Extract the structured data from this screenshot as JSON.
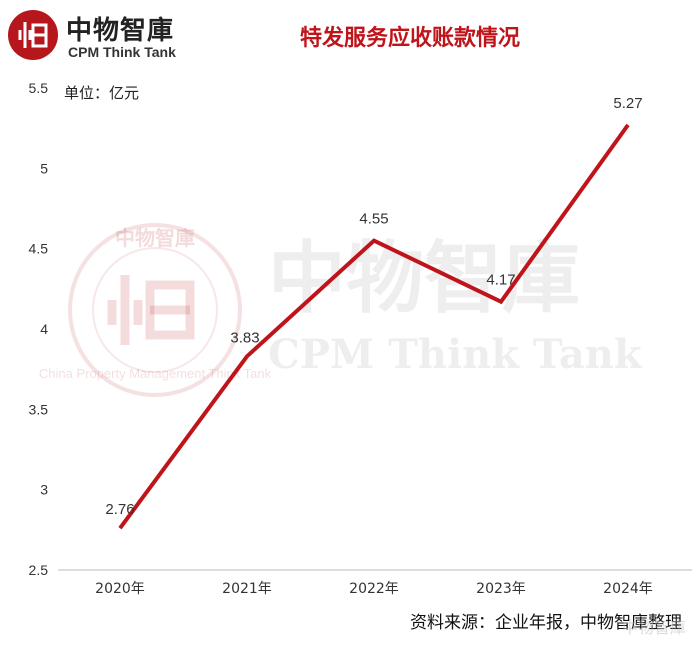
{
  "header": {
    "logo_cn": "中物智庫",
    "logo_en": "CPM Think Tank",
    "title": "特发服务应收账款情况"
  },
  "unit_label": "单位：亿元",
  "source_label": "资料来源：企业年报，中物智庫整理",
  "watermark": {
    "cn": "中物智庫",
    "en": "CPM Think Tank",
    "seal_cn": "中物智庫",
    "seal_ring": "China Property Management Think Tank"
  },
  "corner_mark": "中物智庫",
  "colors": {
    "line": "#c0141b",
    "brand": "#b5171d",
    "axis": "#999999"
  },
  "chart_data": {
    "type": "line",
    "title": "特发服务应收账款情况",
    "categories": [
      "2020年",
      "2021年",
      "2022年",
      "2023年",
      "2024年"
    ],
    "series": [
      {
        "values": [
          2.76,
          3.83,
          4.55,
          4.17,
          5.27
        ]
      }
    ],
    "data_labels": [
      "2.76",
      "3.83",
      "4.55",
      "4.17",
      "5.27"
    ],
    "y_ticks": [
      "2.5",
      "3",
      "3.5",
      "4",
      "4.5",
      "5",
      "5.5"
    ],
    "ylim": [
      2.5,
      5.5
    ],
    "grid": false,
    "legend": "none"
  }
}
